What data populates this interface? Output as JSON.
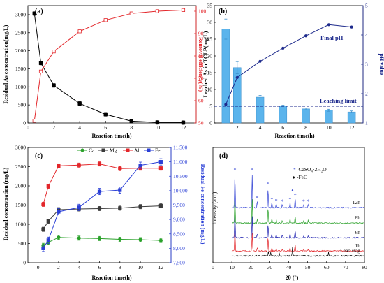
{
  "panels": {
    "a": {
      "label": "(a)",
      "xlabel": "Reaction time(h)",
      "ylabel_left": "Residual As concentration(mg/L)",
      "ylabel_right": "Removal efficiency(%)",
      "xlim": [
        0,
        13
      ],
      "xticks": [
        0,
        2,
        4,
        6,
        8,
        10,
        12
      ],
      "ylim_left": [
        0,
        3250
      ],
      "yticks_left": [
        0,
        500,
        1000,
        1500,
        2000,
        2500,
        3000
      ],
      "ylim_right": [
        50,
        102.5
      ],
      "yticks_right": [
        50,
        60,
        70,
        80,
        90,
        100
      ],
      "left_color": "#000000",
      "right_color": "#e3262a"
    },
    "b": {
      "label": "(b)",
      "xlabel": "Reaction time(h)",
      "ylabel_left": "Leached As in TCLP(mg/L)",
      "ylabel_right": "pH value",
      "xlim": [
        0,
        13
      ],
      "xticks": [
        2,
        4,
        6,
        8,
        10,
        12
      ],
      "ylim_left": [
        0,
        35
      ],
      "yticks_left": [
        0,
        5,
        10,
        15,
        20,
        25,
        30,
        35
      ],
      "ylim_right": [
        1,
        5
      ],
      "yticks_right": [
        1,
        2,
        3,
        4,
        5
      ],
      "bar_color": "#5bb4ec",
      "line_color": "#1d2a8c",
      "annotation_final_ph": "Final pH",
      "annotation_limit": "Leaching limit",
      "leaching_limit": 5
    },
    "c": {
      "label": "(c)",
      "xlabel": "Reaction time(h)",
      "ylabel_left": "Residual concentration (mg/L)",
      "ylabel_right": "Residual Fe concentration (mg/L)",
      "xlim": [
        -1,
        13
      ],
      "xticks": [
        0,
        2,
        4,
        6,
        8,
        10,
        12
      ],
      "ylim_left": [
        0,
        3000
      ],
      "yticks_left": [
        0,
        500,
        1000,
        1500,
        2000,
        2500,
        3000
      ],
      "ylim_right": [
        7500,
        11500
      ],
      "yticks_right": [
        "7,500",
        "8,000",
        "8,500",
        "9,000",
        "9,500",
        "10,000",
        "10,500",
        "11,000",
        "11,500"
      ]
    },
    "d": {
      "label": "(d)",
      "xlabel": "2θ (°)",
      "ylabel": "Intensity (a.u.)",
      "xlim": [
        0,
        80
      ],
      "xticks": [
        0,
        10,
        20,
        30,
        40,
        50,
        60,
        70,
        80
      ],
      "legend_gypsum": "-CaSO₄·2H₂O",
      "legend_feo": "-FeO",
      "trace_labels": [
        "12h",
        "8h",
        "6h",
        "1h",
        "Lead slag"
      ]
    }
  },
  "chart_data": [
    {
      "type": "line",
      "panel": "a",
      "x": [
        0.5,
        1,
        2,
        4,
        6,
        8,
        10,
        12
      ],
      "series": [
        {
          "axis": "left",
          "values": [
            3030,
            1660,
            1040,
            540,
            240,
            50,
            15,
            10
          ]
        },
        {
          "axis": "right",
          "values": [
            51,
            73,
            82,
            91,
            96,
            99,
            100,
            100.5
          ]
        }
      ]
    },
    {
      "type": "bar",
      "panel": "b",
      "categories": [
        "1",
        "2",
        "4",
        "6",
        "8",
        "10",
        "12"
      ],
      "x": [
        1,
        2,
        4,
        6,
        8,
        10,
        12
      ],
      "values": [
        28,
        16.5,
        7.7,
        5.1,
        4.2,
        3.8,
        3.3
      ],
      "errors": [
        3.0,
        1.8,
        0.5,
        0.2,
        0.3,
        0.3,
        0.3
      ],
      "line": {
        "axis": "right",
        "x": [
          1,
          2,
          4,
          6,
          8,
          10,
          12
        ],
        "values": [
          1.63,
          2.55,
          3.1,
          3.55,
          3.97,
          4.35,
          4.27
        ]
      }
    },
    {
      "type": "line",
      "panel": "c",
      "x": [
        0.5,
        1,
        2,
        4,
        6,
        8,
        10,
        12
      ],
      "series": [
        {
          "name": "Ca",
          "axis": "left",
          "color": "#2aa12a",
          "marker": "circle",
          "values": [
            450,
            530,
            660,
            640,
            630,
            610,
            600,
            580
          ]
        },
        {
          "name": "Mg",
          "axis": "left",
          "color": "#3a3a3a",
          "marker": "square",
          "values": [
            870,
            1080,
            1380,
            1400,
            1410,
            1420,
            1460,
            1480
          ]
        },
        {
          "name": "Al",
          "axis": "left",
          "color": "#e3262a",
          "marker": "square",
          "values": [
            1520,
            1990,
            2520,
            2540,
            2570,
            2450,
            2460,
            2460
          ]
        },
        {
          "name": "Fe",
          "axis": "right",
          "color": "#2a3fd6",
          "marker": "square",
          "values": [
            8000,
            8280,
            9270,
            9420,
            9970,
            10020,
            10880,
            11000
          ]
        }
      ]
    },
    {
      "type": "line",
      "panel": "d",
      "xlim": [
        0,
        80
      ],
      "traces": [
        {
          "name": "12h",
          "color": "#3b4bd6"
        },
        {
          "name": "8h",
          "color": "#2ba12a"
        },
        {
          "name": "6h",
          "color": "#1f22b0"
        },
        {
          "name": "1h",
          "color": "#e3262a"
        },
        {
          "name": "Lead slag",
          "color": "#000000"
        }
      ],
      "gypsum_peaks_2theta": [
        11.6,
        20.7,
        23.4,
        29.1,
        31.1,
        33.4,
        36.6,
        40.7,
        43.4,
        47.9,
        50.3
      ],
      "feo_peaks_2theta": [
        42.0
      ]
    }
  ]
}
